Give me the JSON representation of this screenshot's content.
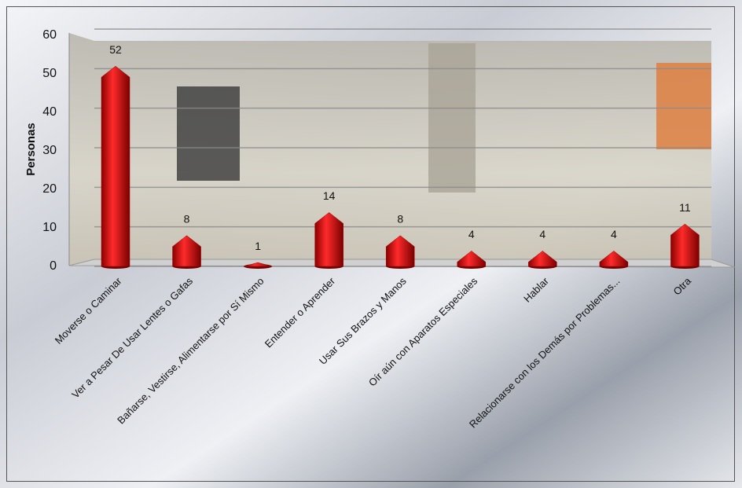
{
  "chart_data": {
    "type": "bar",
    "y_label": "Personas",
    "categories": [
      "Moverse o Caminar",
      "Ver a Pesar De Usar Lentes o Gafas",
      "Bañarse, Vestirse, Alimentarse por Sí Mismo",
      "Entender o Aprender",
      "Usar Sus Brazos y Manos",
      "Oír aún con Aparatos Especiales",
      "Hablar",
      "Relacionarse con los Demás por Problemas...",
      "Otra"
    ],
    "values": [
      52,
      8,
      1,
      14,
      8,
      4,
      4,
      4,
      11
    ],
    "color": "#e00000",
    "ylim": [
      0,
      60
    ],
    "yticks": [
      0,
      10,
      20,
      30,
      40,
      50,
      60
    ],
    "grid": true
  }
}
